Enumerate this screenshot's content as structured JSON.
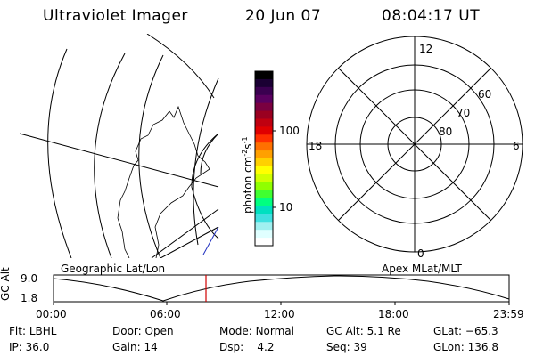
{
  "header": {
    "instrument": "Ultraviolet Imager",
    "date": "20 Jun 07",
    "time": "08:04:17 UT"
  },
  "left_panel": {
    "label": "Geographic Lat/Lon"
  },
  "right_panel": {
    "label": "Apex MLat/MLT",
    "mlt_labels": {
      "top": "12",
      "bottom": "0",
      "left": "18",
      "right": "6"
    },
    "lat_labels": [
      "60",
      "70",
      "80"
    ]
  },
  "colorbar": {
    "unit_label": "photon cm",
    "unit_exp1": "-2",
    "unit_mid": "s",
    "unit_exp2": "-1",
    "ticks": [
      "100",
      "10"
    ],
    "colors": [
      "#000000",
      "#1a0033",
      "#3a0050",
      "#5a0060",
      "#7a0040",
      "#9a0020",
      "#c00010",
      "#e00000",
      "#ff3000",
      "#ff7000",
      "#ffa000",
      "#ffd000",
      "#ffff00",
      "#d0ff00",
      "#90ff00",
      "#40ff30",
      "#00ff80",
      "#00e0c0",
      "#40e0e0",
      "#a0f0f0",
      "#e0ffff",
      "#ffffff"
    ]
  },
  "altitude_plot": {
    "ylabel": "GC Alt",
    "y_ticks": [
      "9.0",
      "1.8"
    ],
    "x_ticks": [
      "00:00",
      "06:00",
      "12:00",
      "18:00",
      "23:59"
    ],
    "cursor_color": "#d00000",
    "curve_color": "#000000"
  },
  "info": {
    "flt_label": "Flt:",
    "flt_value": "LBHL",
    "ip_label": "IP:",
    "ip_value": "36.0",
    "door_label": "Door:",
    "door_value": "Open",
    "gain_label": "Gain:",
    "gain_value": "14",
    "mode_label": "Mode:",
    "mode_value": "Normal",
    "dsp_label": "Dsp:",
    "dsp_value": "4.2",
    "gcalt_label": "GC Alt:",
    "gcalt_value": "5.1 Re",
    "seq_label": "Seq:",
    "seq_value": "39",
    "glat_label": "GLat:",
    "glat_value": "−65.3",
    "glon_label": "GLon:",
    "glon_value": "136.8"
  }
}
